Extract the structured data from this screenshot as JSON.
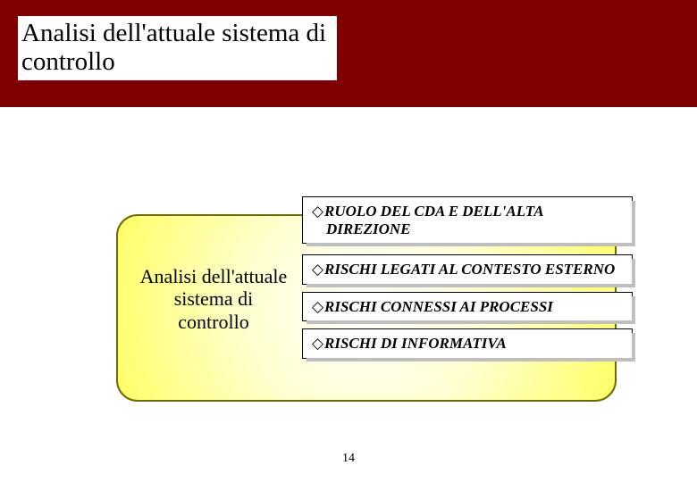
{
  "slide": {
    "title_line1": "Analisi dell'attuale sistema di",
    "title_line2": "controllo"
  },
  "panel": {
    "label": "Analisi dell'attuale sistema di controllo"
  },
  "bullet_glyph": "◇",
  "items": [
    {
      "text": "RUOLO DEL CDA E DELL'ALTA DIREZIONE"
    },
    {
      "text": "RISCHI LEGATI AL CONTESTO ESTERNO"
    },
    {
      "text": "RISCHI CONNESSI AI PROCESSI"
    },
    {
      "text": "RISCHI DI INFORMATIVA"
    }
  ],
  "page_number": "14",
  "colors": {
    "header_bg": "#7e0000",
    "panel_border": "#6b6b00",
    "panel_fill_inner": "#ffffff",
    "panel_fill_outer": "#ffff66",
    "box_bg": "#ffffff",
    "box_shadow": "#bfbfbf"
  }
}
